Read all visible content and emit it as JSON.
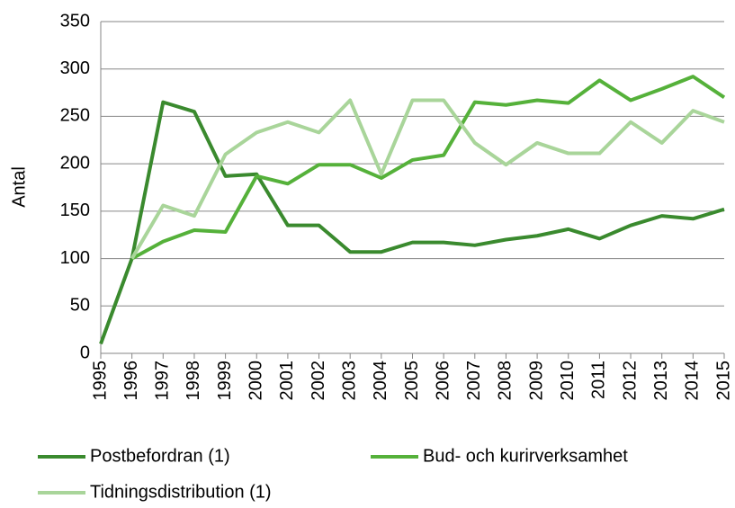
{
  "chart_data": {
    "type": "line",
    "ylabel": "Antal",
    "x": [
      1995,
      1996,
      1997,
      1998,
      1999,
      2000,
      2001,
      2002,
      2003,
      2004,
      2005,
      2006,
      2007,
      2008,
      2009,
      2010,
      2011,
      2012,
      2013,
      2014,
      2015
    ],
    "series": [
      {
        "name": "Postbefordran (1)",
        "color": "#3a8a2e",
        "values": [
          10,
          100,
          265,
          255,
          187,
          189,
          135,
          135,
          107,
          107,
          117,
          117,
          114,
          120,
          124,
          131,
          121,
          135,
          145,
          142,
          152
        ]
      },
      {
        "name": "Bud- och kurirverksamhet",
        "color": "#55b13a",
        "values": [
          null,
          100,
          118,
          130,
          128,
          187,
          179,
          199,
          199,
          185,
          204,
          209,
          265,
          262,
          267,
          264,
          288,
          267,
          279,
          292,
          270
        ]
      },
      {
        "name": "Tidningsdistribution (1)",
        "color": "#a9d59a",
        "values": [
          null,
          100,
          156,
          145,
          210,
          233,
          244,
          233,
          267,
          189,
          267,
          267,
          222,
          199,
          222,
          211,
          211,
          244,
          222,
          256,
          244
        ]
      }
    ],
    "xlim": [
      1995,
      2015
    ],
    "xticks": [
      1995,
      1996,
      1997,
      1998,
      1999,
      2000,
      2001,
      2002,
      2003,
      2004,
      2005,
      2006,
      2007,
      2008,
      2009,
      2010,
      2011,
      2012,
      2013,
      2014,
      2015
    ],
    "ylim": [
      0,
      350
    ],
    "yticks": [
      0,
      50,
      100,
      150,
      200,
      250,
      300,
      350
    ],
    "grid": true
  }
}
